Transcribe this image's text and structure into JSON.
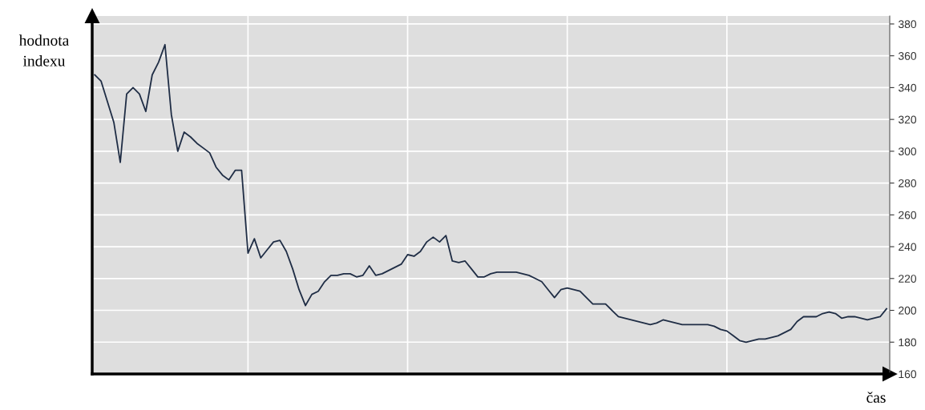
{
  "chart_data": {
    "type": "line",
    "ylabel": "hodnota\nindexu",
    "xlabel": "čas",
    "categories": [
      null,
      null,
      null,
      null,
      null,
      null,
      null,
      null,
      null,
      null,
      null,
      null,
      null,
      null,
      null,
      null,
      null,
      null,
      null,
      null,
      null,
      null,
      null,
      null,
      null,
      null,
      null,
      null,
      null,
      null,
      null,
      null,
      null,
      null,
      null,
      null,
      null,
      null,
      null,
      null,
      null,
      null,
      null,
      null,
      null,
      null,
      null,
      null,
      null,
      null,
      null,
      null,
      null,
      null,
      null,
      null,
      null,
      null,
      null,
      null,
      null,
      null,
      null,
      null,
      null,
      null,
      null,
      null,
      null,
      null,
      null,
      null,
      null,
      null,
      null,
      null,
      null,
      null,
      null,
      null,
      null,
      null,
      null,
      null,
      null,
      null,
      null,
      null,
      null,
      null,
      null,
      null,
      null,
      null,
      null,
      null,
      null,
      null,
      null,
      null,
      null,
      null,
      null,
      null,
      null,
      null,
      null,
      null,
      null,
      null,
      null,
      null,
      null,
      null,
      null,
      null,
      null,
      null,
      null,
      null,
      null,
      null,
      null,
      null,
      null
    ],
    "series": [
      {
        "color": "#1f2d45",
        "values": [
          348,
          344,
          331,
          318,
          293,
          336,
          340,
          336,
          325,
          348,
          356,
          367,
          323,
          300,
          312,
          309,
          305,
          302,
          299,
          290,
          285,
          282,
          288,
          288,
          236,
          245,
          233,
          238,
          243,
          244,
          237,
          226,
          213,
          203,
          210,
          212,
          218,
          222,
          222,
          223,
          223,
          221,
          222,
          228,
          222,
          223,
          225,
          227,
          229,
          235,
          234,
          237,
          243,
          246,
          243,
          247,
          231,
          230,
          231,
          226,
          221,
          221,
          223,
          224,
          224,
          224,
          224,
          223,
          222,
          220,
          218,
          213,
          208,
          213,
          214,
          213,
          212,
          208,
          204,
          204,
          204,
          200,
          196,
          195,
          194,
          193,
          192,
          191,
          192,
          194,
          193,
          192,
          191,
          191,
          191,
          191,
          191,
          190,
          188,
          187,
          184,
          181,
          180,
          181,
          182,
          182,
          183,
          184,
          186,
          188,
          193,
          196,
          196,
          196,
          198,
          199,
          198,
          195,
          196,
          196,
          195,
          194,
          195,
          196,
          201
        ]
      }
    ],
    "ylim": [
      160,
      385
    ],
    "yticks": [
      160,
      180,
      200,
      220,
      240,
      260,
      280,
      300,
      320,
      340,
      360,
      380
    ],
    "tick_labels": "y",
    "grid": true,
    "marker": "none",
    "line_style": "solid",
    "legend": false
  }
}
